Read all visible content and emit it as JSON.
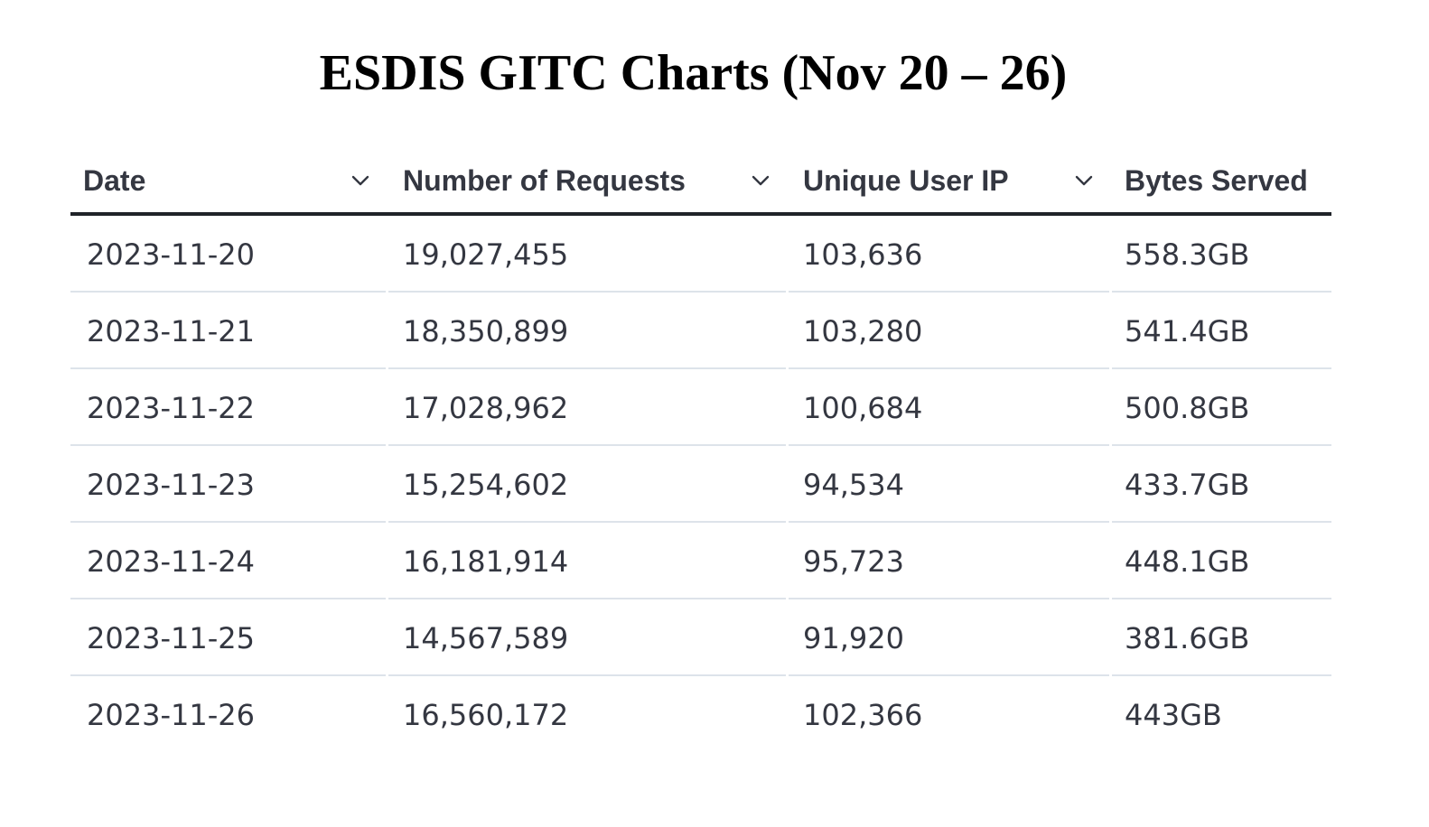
{
  "title": "ESDIS GITC Charts (Nov 20 – 26)",
  "table": {
    "columns": [
      {
        "label": "Date",
        "sortable": true
      },
      {
        "label": "Number of Requests",
        "sortable": true
      },
      {
        "label": "Unique User IP",
        "sortable": true
      },
      {
        "label": "Bytes Served",
        "sortable": false
      }
    ],
    "rows": [
      [
        "2023-11-20",
        "19,027,455",
        "103,636",
        "558.3GB"
      ],
      [
        "2023-11-21",
        "18,350,899",
        "103,280",
        "541.4GB"
      ],
      [
        "2023-11-22",
        "17,028,962",
        "100,684",
        "500.8GB"
      ],
      [
        "2023-11-23",
        "15,254,602",
        "94,534",
        "433.7GB"
      ],
      [
        "2023-11-24",
        "16,181,914",
        "95,723",
        "448.1GB"
      ],
      [
        "2023-11-25",
        "14,567,589",
        "91,920",
        "381.6GB"
      ],
      [
        "2023-11-26",
        "16,560,172",
        "102,366",
        "443GB"
      ]
    ]
  },
  "icons": {
    "sort": "chevron-down-icon"
  },
  "colors": {
    "text": "#343741",
    "header_rule": "#1f2328",
    "row_separator": "#dde3ea"
  },
  "chart_data": {
    "type": "table",
    "title": "ESDIS GITC Charts (Nov 20 – 26)",
    "columns": [
      "Date",
      "Number of Requests",
      "Unique User IP",
      "Bytes Served"
    ],
    "rows": [
      [
        "2023-11-20",
        19027455,
        103636,
        "558.3GB"
      ],
      [
        "2023-11-21",
        18350899,
        103280,
        "541.4GB"
      ],
      [
        "2023-11-22",
        17028962,
        100684,
        "500.8GB"
      ],
      [
        "2023-11-23",
        15254602,
        94534,
        "433.7GB"
      ],
      [
        "2023-11-24",
        16181914,
        95723,
        "448.1GB"
      ],
      [
        "2023-11-25",
        14567589,
        91920,
        "381.6GB"
      ],
      [
        "2023-11-26",
        16560172,
        102366,
        "443GB"
      ]
    ]
  }
}
